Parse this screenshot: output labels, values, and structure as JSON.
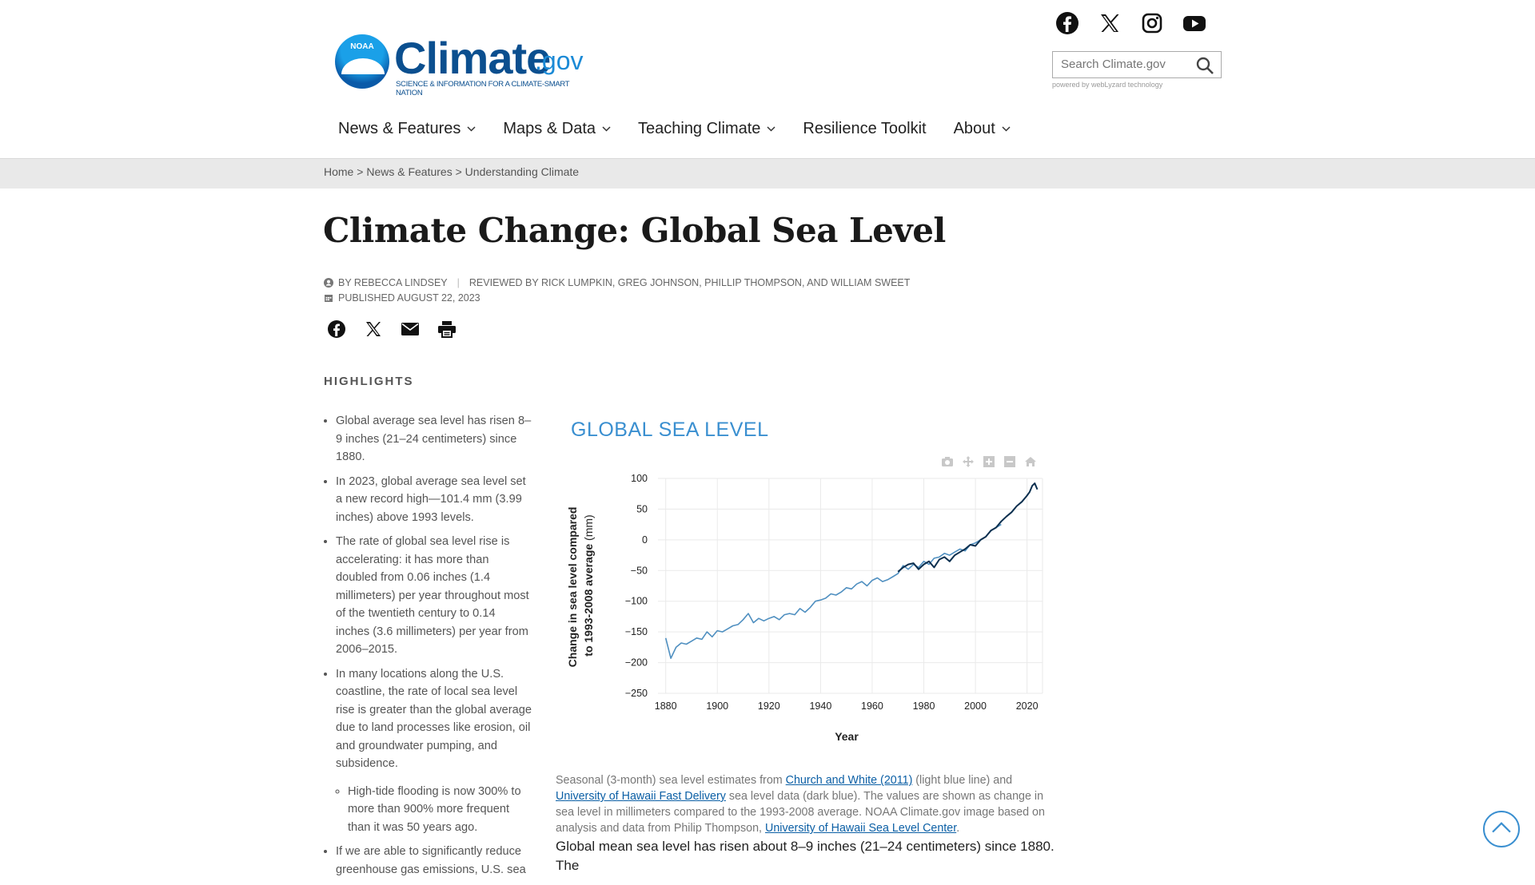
{
  "header": {
    "logo_noaa": "NOAA",
    "logo_word": "Climate",
    "logo_gov": ".gov",
    "logo_tagline": "SCIENCE & INFORMATION FOR A CLIMATE-SMART NATION",
    "social": [
      "facebook-icon",
      "x-icon",
      "instagram-icon",
      "youtube-icon"
    ],
    "search_placeholder": "Search Climate.gov",
    "powered_by": "powered by webLyzard technology"
  },
  "nav": {
    "items": [
      {
        "label": "News & Features",
        "dropdown": true
      },
      {
        "label": "Maps & Data",
        "dropdown": true
      },
      {
        "label": "Teaching Climate",
        "dropdown": true
      },
      {
        "label": "Resilience Toolkit",
        "dropdown": false
      },
      {
        "label": "About",
        "dropdown": true
      }
    ]
  },
  "breadcrumb": {
    "home": "Home",
    "section": "News & Features",
    "current": "Understanding Climate",
    "sep": ">"
  },
  "article": {
    "title": "Climate Change: Global Sea Level",
    "author": "BY REBECCA LINDSEY",
    "reviewers": "REVIEWED BY RICK LUMPKIN, GREG JOHNSON, PHILLIP THOMPSON, AND WILLIAM SWEET",
    "published": "PUBLISHED AUGUST 22, 2023",
    "share": [
      "facebook-icon",
      "x-icon",
      "email-icon",
      "print-icon"
    ]
  },
  "highlights": {
    "title": "HIGHLIGHTS",
    "items": [
      "Global average sea level has risen 8–9 inches (21–24 centimeters) since 1880.",
      "In 2023, global average sea level set a new record high—101.4 mm (3.99 inches) above 1993 levels.",
      "The rate of global sea level rise is accelerating: it has more than doubled from 0.06 inches (1.4 millimeters) per year throughout most of the twentieth century to 0.14 inches (3.6 millimeters) per year from 2006–2015.",
      "In many locations along the U.S. coastline, the rate of local sea level rise is greater than the global average due to land processes like erosion, oil and groundwater pumping, and subsidence."
    ],
    "subitem": "High-tide flooding is now 300% to more than 900% more frequent than it was 50 years ago.",
    "last_item": "If we are able to significantly reduce greenhouse gas emissions, U.S. sea"
  },
  "chart_data": {
    "type": "line",
    "title": "GLOBAL SEA LEVEL",
    "xlabel": "Year",
    "ylabel_bold": "Change in sea level compared to 1993-2008 average",
    "ylabel_unit": "(mm)",
    "xlim": [
      1877,
      2026
    ],
    "ylim": [
      -250,
      100
    ],
    "xticks": [
      1880,
      1900,
      1920,
      1940,
      1960,
      1980,
      2000,
      2020
    ],
    "yticks": [
      100,
      50,
      0,
      -50,
      -100,
      -150,
      -200,
      -250
    ],
    "grid": true,
    "colors": {
      "church_white": "#4f8fc0",
      "uh_fast": "#0b2f4f"
    },
    "series": [
      {
        "name": "Church and White (2011)",
        "x": [
          1880,
          1882,
          1884,
          1886,
          1888,
          1890,
          1892,
          1894,
          1896,
          1898,
          1900,
          1902,
          1904,
          1906,
          1908,
          1910,
          1912,
          1914,
          1916,
          1918,
          1920,
          1922,
          1924,
          1926,
          1928,
          1930,
          1932,
          1934,
          1936,
          1938,
          1940,
          1942,
          1944,
          1946,
          1948,
          1950,
          1952,
          1954,
          1956,
          1958,
          1960,
          1962,
          1964,
          1966,
          1968,
          1970,
          1972,
          1974,
          1976,
          1978,
          1980,
          1982,
          1984,
          1986,
          1988,
          1990,
          1992,
          1994,
          1996,
          1998,
          2000,
          2002,
          2004,
          2006,
          2008,
          2010
        ],
        "values": [
          -160,
          -193,
          -175,
          -168,
          -170,
          -165,
          -160,
          -162,
          -150,
          -158,
          -148,
          -150,
          -145,
          -140,
          -138,
          -130,
          -120,
          -135,
          -128,
          -132,
          -128,
          -125,
          -130,
          -122,
          -120,
          -122,
          -112,
          -118,
          -110,
          -100,
          -98,
          -95,
          -88,
          -90,
          -85,
          -78,
          -80,
          -72,
          -68,
          -75,
          -66,
          -62,
          -68,
          -65,
          -60,
          -55,
          -42,
          -48,
          -40,
          -45,
          -35,
          -40,
          -30,
          -28,
          -22,
          -25,
          -20,
          -15,
          -18,
          -8,
          -5,
          0,
          5,
          15,
          20,
          25
        ]
      },
      {
        "name": "University of Hawaii Fast Delivery",
        "x": [
          1970,
          1972,
          1974,
          1976,
          1978,
          1980,
          1982,
          1984,
          1986,
          1988,
          1990,
          1992,
          1994,
          1996,
          1998,
          2000,
          2002,
          2004,
          2006,
          2008,
          2010,
          2012,
          2014,
          2016,
          2018,
          2020,
          2021,
          2022,
          2023,
          2024
        ],
        "values": [
          -52,
          -45,
          -40,
          -38,
          -48,
          -40,
          -35,
          -45,
          -32,
          -28,
          -35,
          -25,
          -20,
          -15,
          -8,
          -10,
          0,
          5,
          15,
          20,
          30,
          38,
          45,
          55,
          62,
          72,
          78,
          88,
          92,
          82
        ]
      }
    ],
    "modebar": [
      "camera-icon",
      "pan-icon",
      "zoom-in-icon",
      "zoom-out-icon",
      "home-icon"
    ]
  },
  "caption": {
    "pre": "Seasonal (3-month) sea level estimates from ",
    "link1": "Church and White (2011)",
    "mid1": " (light blue line) and ",
    "link2": "University of Hawaii Fast Delivery",
    "mid2": " sea level data (dark blue). The values are shown as change in sea level in millimeters compared to the 1993-2008 average. NOAA Climate.gov image based on analysis and data from Philip Thompson, ",
    "link3": "University of Hawaii Sea Level Center",
    "post": "."
  },
  "body": {
    "para1": "Global mean sea level has risen about 8–9 inches (21–24 centimeters) since 1880. The"
  }
}
